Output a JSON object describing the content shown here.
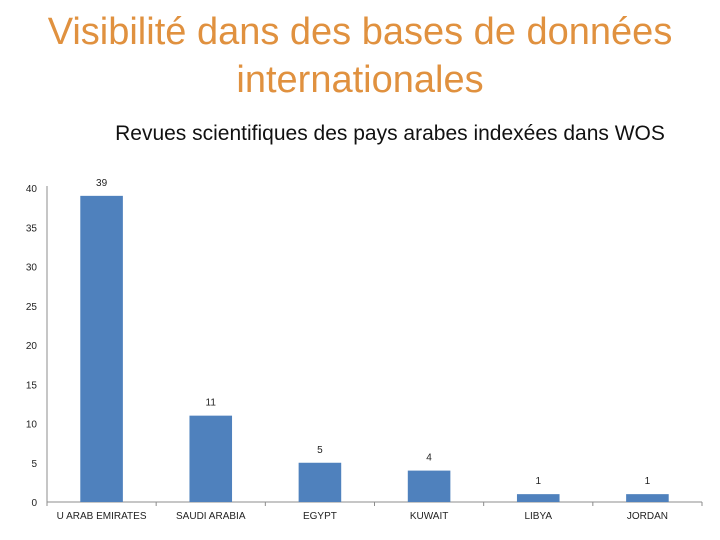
{
  "slide": {
    "title": "Visibilité dans des bases de données internationales"
  },
  "chart_data": {
    "type": "bar",
    "title": "Revues scientifiques des pays arabes indexées dans WOS",
    "xlabel": "",
    "ylabel": "",
    "categories": [
      "U ARAB EMIRATES",
      "SAUDI ARABIA",
      "EGYPT",
      "KUWAIT",
      "LIBYA",
      "JORDAN"
    ],
    "values": [
      39,
      11,
      5,
      4,
      1,
      1
    ],
    "ylim": [
      0,
      40
    ],
    "yticks": [
      0,
      5,
      10,
      15,
      20,
      25,
      30,
      35,
      40
    ],
    "grid": false,
    "legend": "none",
    "bar_color": "#4f81bd",
    "axis_color": "#8c8c8c",
    "title_color": "#e0913f"
  }
}
